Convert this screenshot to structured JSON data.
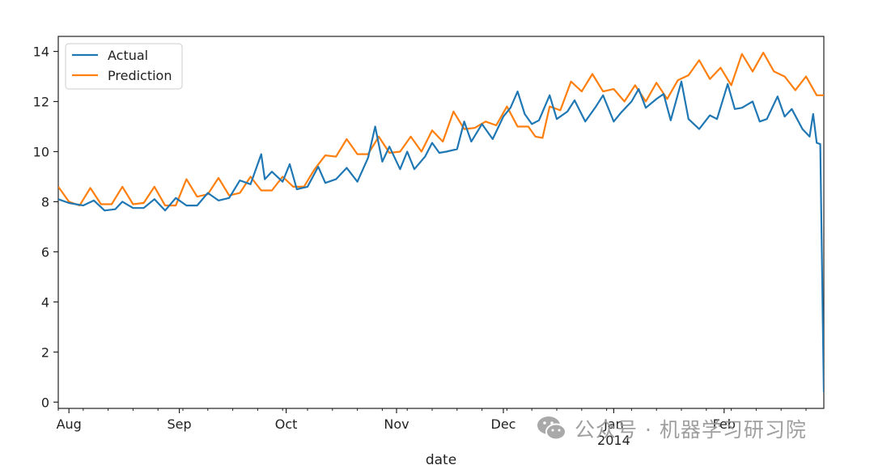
{
  "watermark": {
    "text": "公众号 · 机器学习研习院"
  },
  "chart_data": {
    "type": "line",
    "title": "",
    "xlabel": "date",
    "ylabel": "",
    "ylim": [
      -0.25,
      14.6
    ],
    "y_ticks": [
      0,
      2,
      4,
      6,
      8,
      10,
      12,
      14
    ],
    "x_start": "2013-07-29",
    "x_end": "2014-03-01",
    "x_ticks": [
      {
        "date": "2013-08-01",
        "label": "Aug"
      },
      {
        "date": "2013-09-01",
        "label": "Sep"
      },
      {
        "date": "2013-10-01",
        "label": "Oct"
      },
      {
        "date": "2013-11-01",
        "label": "Nov"
      },
      {
        "date": "2013-12-01",
        "label": "Dec"
      },
      {
        "date": "2014-01-01",
        "label": "Jan"
      },
      {
        "date": "2014-02-01",
        "label": "Feb"
      }
    ],
    "x_year_label": {
      "date": "2014-01-01",
      "label": "2014"
    },
    "legend_position": "upper left",
    "grid": false,
    "series": [
      {
        "name": "Actual",
        "color": "#1f77b4",
        "points": [
          [
            "2013-07-29",
            8.1
          ],
          [
            "2013-08-01",
            7.95
          ],
          [
            "2013-08-05",
            7.85
          ],
          [
            "2013-08-08",
            8.05
          ],
          [
            "2013-08-11",
            7.65
          ],
          [
            "2013-08-14",
            7.7
          ],
          [
            "2013-08-16",
            8.0
          ],
          [
            "2013-08-19",
            7.75
          ],
          [
            "2013-08-22",
            7.75
          ],
          [
            "2013-08-25",
            8.1
          ],
          [
            "2013-08-28",
            7.65
          ],
          [
            "2013-08-31",
            8.15
          ],
          [
            "2013-09-03",
            7.85
          ],
          [
            "2013-09-06",
            7.85
          ],
          [
            "2013-09-09",
            8.35
          ],
          [
            "2013-09-12",
            8.05
          ],
          [
            "2013-09-15",
            8.15
          ],
          [
            "2013-09-18",
            8.85
          ],
          [
            "2013-09-21",
            8.7
          ],
          [
            "2013-09-24",
            9.9
          ],
          [
            "2013-09-25",
            8.9
          ],
          [
            "2013-09-27",
            9.2
          ],
          [
            "2013-09-30",
            8.8
          ],
          [
            "2013-10-02",
            9.5
          ],
          [
            "2013-10-04",
            8.5
          ],
          [
            "2013-10-07",
            8.6
          ],
          [
            "2013-10-10",
            9.4
          ],
          [
            "2013-10-12",
            8.75
          ],
          [
            "2013-10-15",
            8.9
          ],
          [
            "2013-10-18",
            9.35
          ],
          [
            "2013-10-21",
            8.8
          ],
          [
            "2013-10-24",
            9.75
          ],
          [
            "2013-10-26",
            11.0
          ],
          [
            "2013-10-28",
            9.6
          ],
          [
            "2013-10-30",
            10.2
          ],
          [
            "2013-11-02",
            9.3
          ],
          [
            "2013-11-04",
            10.0
          ],
          [
            "2013-11-06",
            9.3
          ],
          [
            "2013-11-09",
            9.8
          ],
          [
            "2013-11-11",
            10.35
          ],
          [
            "2013-11-13",
            9.95
          ],
          [
            "2013-11-15",
            10.0
          ],
          [
            "2013-11-18",
            10.1
          ],
          [
            "2013-11-20",
            11.2
          ],
          [
            "2013-11-22",
            10.4
          ],
          [
            "2013-11-25",
            11.1
          ],
          [
            "2013-11-28",
            10.5
          ],
          [
            "2013-12-01",
            11.4
          ],
          [
            "2013-12-03",
            11.75
          ],
          [
            "2013-12-05",
            12.4
          ],
          [
            "2013-12-07",
            11.5
          ],
          [
            "2013-12-09",
            11.1
          ],
          [
            "2013-12-11",
            11.25
          ],
          [
            "2013-12-14",
            12.25
          ],
          [
            "2013-12-16",
            11.3
          ],
          [
            "2013-12-19",
            11.6
          ],
          [
            "2013-12-21",
            12.05
          ],
          [
            "2013-12-24",
            11.2
          ],
          [
            "2013-12-27",
            11.8
          ],
          [
            "2013-12-29",
            12.25
          ],
          [
            "2014-01-01",
            11.2
          ],
          [
            "2014-01-03",
            11.55
          ],
          [
            "2014-01-06",
            12.0
          ],
          [
            "2014-01-08",
            12.5
          ],
          [
            "2014-01-10",
            11.75
          ],
          [
            "2014-01-13",
            12.1
          ],
          [
            "2014-01-15",
            12.3
          ],
          [
            "2014-01-17",
            11.25
          ],
          [
            "2014-01-20",
            12.8
          ],
          [
            "2014-01-22",
            11.3
          ],
          [
            "2014-01-25",
            10.9
          ],
          [
            "2014-01-28",
            11.45
          ],
          [
            "2014-01-30",
            11.3
          ],
          [
            "2014-02-02",
            12.7
          ],
          [
            "2014-02-04",
            11.7
          ],
          [
            "2014-02-06",
            11.75
          ],
          [
            "2014-02-09",
            12.0
          ],
          [
            "2014-02-11",
            11.2
          ],
          [
            "2014-02-13",
            11.3
          ],
          [
            "2014-02-16",
            12.2
          ],
          [
            "2014-02-18",
            11.4
          ],
          [
            "2014-02-20",
            11.7
          ],
          [
            "2014-02-23",
            10.9
          ],
          [
            "2014-02-25",
            10.6
          ],
          [
            "2014-02-26",
            11.5
          ],
          [
            "2014-02-27",
            10.35
          ],
          [
            "2014-02-28",
            10.3
          ],
          [
            "2014-03-01",
            0.4
          ]
        ]
      },
      {
        "name": "Prediction",
        "color": "#ff7f0e",
        "points": [
          [
            "2013-07-29",
            8.6
          ],
          [
            "2013-08-01",
            8.0
          ],
          [
            "2013-08-04",
            7.85
          ],
          [
            "2013-08-07",
            8.55
          ],
          [
            "2013-08-10",
            7.9
          ],
          [
            "2013-08-13",
            7.9
          ],
          [
            "2013-08-16",
            8.6
          ],
          [
            "2013-08-19",
            7.9
          ],
          [
            "2013-08-22",
            7.95
          ],
          [
            "2013-08-25",
            8.6
          ],
          [
            "2013-08-28",
            7.85
          ],
          [
            "2013-08-31",
            7.85
          ],
          [
            "2013-09-03",
            8.9
          ],
          [
            "2013-09-06",
            8.2
          ],
          [
            "2013-09-09",
            8.3
          ],
          [
            "2013-09-12",
            8.95
          ],
          [
            "2013-09-15",
            8.25
          ],
          [
            "2013-09-18",
            8.35
          ],
          [
            "2013-09-21",
            9.0
          ],
          [
            "2013-09-24",
            8.45
          ],
          [
            "2013-09-27",
            8.45
          ],
          [
            "2013-09-30",
            9.0
          ],
          [
            "2013-10-03",
            8.6
          ],
          [
            "2013-10-06",
            8.6
          ],
          [
            "2013-10-09",
            9.3
          ],
          [
            "2013-10-12",
            9.85
          ],
          [
            "2013-10-15",
            9.8
          ],
          [
            "2013-10-18",
            10.5
          ],
          [
            "2013-10-21",
            9.9
          ],
          [
            "2013-10-24",
            9.9
          ],
          [
            "2013-10-27",
            10.6
          ],
          [
            "2013-10-30",
            9.95
          ],
          [
            "2013-11-02",
            10.0
          ],
          [
            "2013-11-05",
            10.6
          ],
          [
            "2013-11-08",
            10.0
          ],
          [
            "2013-11-11",
            10.85
          ],
          [
            "2013-11-14",
            10.4
          ],
          [
            "2013-11-17",
            11.6
          ],
          [
            "2013-11-20",
            10.9
          ],
          [
            "2013-11-23",
            10.95
          ],
          [
            "2013-11-26",
            11.2
          ],
          [
            "2013-11-29",
            11.05
          ],
          [
            "2013-12-02",
            11.8
          ],
          [
            "2013-12-05",
            11.0
          ],
          [
            "2013-12-08",
            11.0
          ],
          [
            "2013-12-10",
            10.6
          ],
          [
            "2013-12-12",
            10.55
          ],
          [
            "2013-12-14",
            11.8
          ],
          [
            "2013-12-17",
            11.65
          ],
          [
            "2013-12-20",
            12.8
          ],
          [
            "2013-12-23",
            12.4
          ],
          [
            "2013-12-26",
            13.1
          ],
          [
            "2013-12-29",
            12.4
          ],
          [
            "2014-01-01",
            12.5
          ],
          [
            "2014-01-04",
            12.0
          ],
          [
            "2014-01-07",
            12.65
          ],
          [
            "2014-01-10",
            12.0
          ],
          [
            "2014-01-13",
            12.75
          ],
          [
            "2014-01-16",
            12.1
          ],
          [
            "2014-01-19",
            12.85
          ],
          [
            "2014-01-22",
            13.05
          ],
          [
            "2014-01-25",
            13.65
          ],
          [
            "2014-01-28",
            12.9
          ],
          [
            "2014-01-31",
            13.35
          ],
          [
            "2014-02-03",
            12.65
          ],
          [
            "2014-02-06",
            13.9
          ],
          [
            "2014-02-09",
            13.2
          ],
          [
            "2014-02-12",
            13.95
          ],
          [
            "2014-02-15",
            13.2
          ],
          [
            "2014-02-18",
            13.0
          ],
          [
            "2014-02-21",
            12.45
          ],
          [
            "2014-02-24",
            13.0
          ],
          [
            "2014-02-27",
            12.25
          ],
          [
            "2014-03-01",
            12.25
          ]
        ]
      }
    ]
  }
}
